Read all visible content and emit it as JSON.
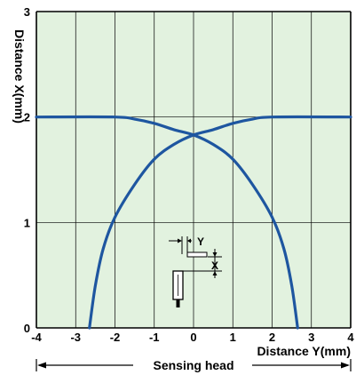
{
  "chart_data": {
    "type": "line",
    "xlabel": "Distance Y(mm)",
    "ylabel": "Distance X(mm)",
    "xlim": [
      -4,
      4
    ],
    "ylim": [
      0,
      3
    ],
    "x_ticks": [
      "-4",
      "-3",
      "-2",
      "-1",
      "0",
      "1",
      "2",
      "3",
      "4"
    ],
    "y_ticks": [
      "0",
      "1",
      "2",
      "3"
    ],
    "grid": true,
    "colors": {
      "plot_background": "#e2f2df",
      "series": "#1e56a0",
      "grid": "#000000"
    },
    "series": [
      {
        "points": [
          [
            -4.0,
            2.0
          ],
          [
            -2.0,
            2.0
          ],
          [
            -1.5,
            1.98
          ],
          [
            -1.0,
            1.94
          ],
          [
            -0.5,
            1.88
          ],
          [
            0.0,
            1.83
          ],
          [
            0.5,
            1.74
          ],
          [
            1.0,
            1.6
          ],
          [
            1.5,
            1.36
          ],
          [
            2.0,
            1.05
          ],
          [
            2.3,
            0.75
          ],
          [
            2.5,
            0.4
          ],
          [
            2.65,
            0.0
          ]
        ]
      },
      {
        "points": [
          [
            4.0,
            2.0
          ],
          [
            2.0,
            2.0
          ],
          [
            1.5,
            1.98
          ],
          [
            1.0,
            1.94
          ],
          [
            0.5,
            1.88
          ],
          [
            0.0,
            1.83
          ],
          [
            -0.5,
            1.74
          ],
          [
            -1.0,
            1.6
          ],
          [
            -1.5,
            1.36
          ],
          [
            -2.0,
            1.05
          ],
          [
            -2.3,
            0.75
          ],
          [
            -2.5,
            0.4
          ],
          [
            -2.65,
            0.0
          ]
        ]
      }
    ]
  },
  "inset": {
    "y_label": "Y",
    "x_label": "X"
  },
  "footer": {
    "label": "Sensing head"
  }
}
